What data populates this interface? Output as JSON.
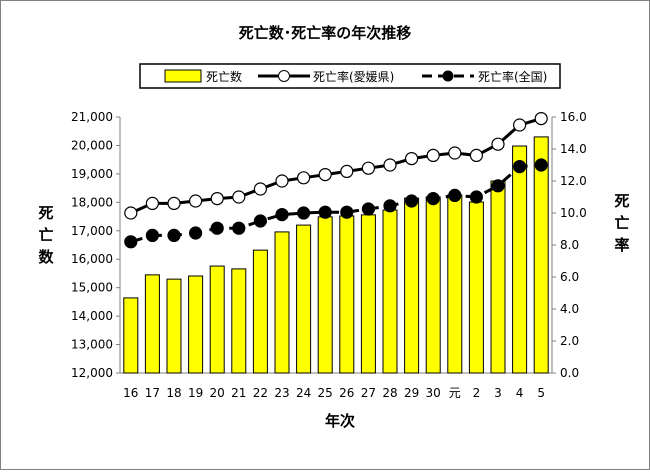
{
  "chart_data": {
    "type": "bar+line",
    "title": "死亡数･死亡率の年次推移",
    "xlabel": "年次",
    "ylabel_left": "死亡数",
    "ylabel_right": "死亡率",
    "categories": [
      "16",
      "17",
      "18",
      "19",
      "20",
      "21",
      "22",
      "23",
      "24",
      "25",
      "26",
      "27",
      "28",
      "29",
      "30",
      "元",
      "2",
      "3",
      "4",
      "5"
    ],
    "y_left_lim": [
      12000,
      21000
    ],
    "y_left_ticks": [
      "12,000",
      "13,000",
      "14,000",
      "15,000",
      "16,000",
      "17,000",
      "18,000",
      "19,000",
      "20,000",
      "21,000"
    ],
    "y_right_lim": [
      0,
      16
    ],
    "y_right_ticks": [
      "0.0",
      "2.0",
      "4.0",
      "6.0",
      "8.0",
      "10.0",
      "12.0",
      "14.0",
      "16.0"
    ],
    "legend_position": "top",
    "series": [
      {
        "name": "死亡数",
        "type": "bar",
        "axis": "left",
        "color": "#ffff00",
        "values": [
          14640,
          15450,
          15300,
          15410,
          15760,
          15660,
          16320,
          16960,
          17200,
          17490,
          17520,
          17560,
          17730,
          18150,
          18190,
          18260,
          18010,
          18750,
          19980,
          20300
        ]
      },
      {
        "name": "死亡率(愛媛県)",
        "type": "line",
        "axis": "right",
        "marker": "open-circle",
        "line": "solid",
        "values": [
          10.0,
          10.6,
          10.6,
          10.75,
          10.9,
          11.0,
          11.5,
          12.0,
          12.2,
          12.4,
          12.6,
          12.8,
          13.0,
          13.4,
          13.6,
          13.75,
          13.6,
          14.3,
          15.5,
          15.9
        ]
      },
      {
        "name": "死亡率(全国)",
        "type": "line",
        "axis": "right",
        "marker": "filled-circle",
        "line": "dashed",
        "values": [
          8.2,
          8.6,
          8.6,
          8.75,
          9.05,
          9.05,
          9.5,
          9.9,
          10.0,
          10.05,
          10.05,
          10.25,
          10.45,
          10.75,
          10.9,
          11.1,
          11.0,
          11.7,
          12.9,
          13.0
        ]
      }
    ]
  }
}
